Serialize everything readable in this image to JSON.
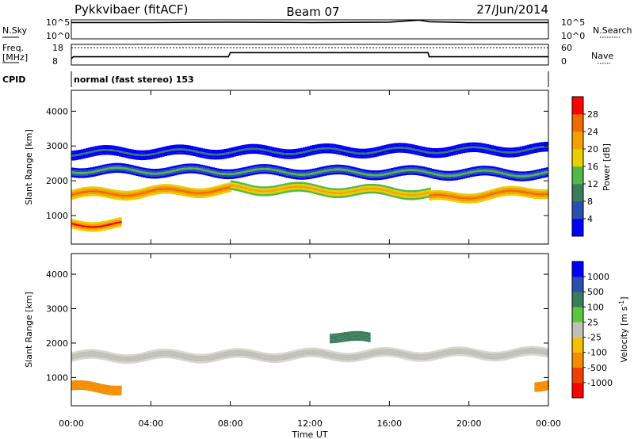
{
  "header": {
    "station": "Pykkvibaer (fitACF)",
    "beam": "Beam 07",
    "date": "27/Jun/2014"
  },
  "noise_panel": {
    "left_label": "N.Sky",
    "left_ticks": [
      "10^5",
      "10^0"
    ],
    "right_ticks": [
      "10^5",
      "10^0"
    ],
    "right_label": "N.Search"
  },
  "freq_panel": {
    "left_label_1": "Freq.",
    "left_label_2": "[MHz]",
    "left_ticks": [
      "18",
      "8"
    ],
    "right_ticks": [
      "60",
      "0"
    ],
    "right_label": "Nave"
  },
  "cpid": {
    "label": "CPID",
    "text": "normal (fast stereo) 153"
  },
  "time_axis": {
    "label": "Time UT",
    "ticks": [
      "00:00",
      "04:00",
      "08:00",
      "12:00",
      "16:00",
      "20:00",
      "00:00"
    ]
  },
  "power_panel": {
    "ylabel": "Slant Range [km]",
    "yticks": [
      "1000",
      "2000",
      "3000",
      "4000"
    ],
    "colorbar_label": "Power [dB]",
    "colorbar_ticks": [
      "4",
      "8",
      "12",
      "16",
      "20",
      "24",
      "28"
    ],
    "colors": [
      "#0000ff",
      "#2a4fb0",
      "#3a7d5c",
      "#54b848",
      "#e8d000",
      "#f5a000",
      "#f06a00",
      "#ff0000"
    ]
  },
  "velocity_panel": {
    "ylabel": "Slant Range [km]",
    "yticks": [
      "1000",
      "2000",
      "3000",
      "4000"
    ],
    "colorbar_label": "Velocity [m s",
    "colorbar_label_sup": "-1",
    "colorbar_label_end": "]",
    "colorbar_ticks": [
      "1000",
      "500",
      "100",
      "25",
      "-25",
      "-100",
      "-500",
      "-1000"
    ],
    "colors": [
      "#0000ff",
      "#2a4fb0",
      "#3a7d5c",
      "#5cc63e",
      "#c0c0b8",
      "#f5c000",
      "#f58c00",
      "#f04000",
      "#ff0000"
    ]
  },
  "chart_data": [
    {
      "type": "line",
      "panel": "noise",
      "x_range_hours": [
        0,
        24
      ],
      "series": [
        {
          "values_log": [
            {
              "x": 0.0,
              "y": 4.3
            },
            {
              "x": 4.0,
              "y": 4.3
            },
            {
              "x": 8.0,
              "y": 4.4
            },
            {
              "x": 12.0,
              "y": 4.3
            },
            {
              "x": 16.0,
              "y": 4.4
            },
            {
              "x": 17.5,
              "y": 4.9
            },
            {
              "x": 18.0,
              "y": 4.5
            },
            {
              "x": 20.0,
              "y": 4.3
            },
            {
              "x": 24.0,
              "y": 4.3
            }
          ]
        }
      ]
    },
    {
      "type": "line",
      "panel": "frequency",
      "ylim_mhz": [
        8,
        18
      ],
      "series": [
        {
          "values": [
            {
              "x": 0.0,
              "y": 11.0
            },
            {
              "x": 0.1,
              "y": 12.0
            },
            {
              "x": 7.9,
              "y": 12.0
            },
            {
              "x": 8.0,
              "y": 14.0
            },
            {
              "x": 17.95,
              "y": 14.0
            },
            {
              "x": 18.0,
              "y": 12.0
            },
            {
              "x": 24.0,
              "y": 12.0
            }
          ]
        },
        {
          "values": [
            {
              "x": 0.0,
              "y": 50
            },
            {
              "x": 24.0,
              "y": 50
            }
          ]
        }
      ]
    },
    {
      "type": "heatmap",
      "panel": "power",
      "x_range_hours": [
        0,
        24
      ],
      "ylim_km": [
        180,
        4600
      ],
      "zlim_db": [
        0,
        32
      ],
      "bands": [
        {
          "t": [
            0,
            8
          ],
          "r0": 1600,
          "r1": 1750,
          "db": 26
        },
        {
          "t": [
            8,
            18
          ],
          "r0": 1800,
          "r1": 1650,
          "db": 22
        },
        {
          "t": [
            18,
            24
          ],
          "r0": 1500,
          "r1": 1700,
          "db": 26
        },
        {
          "t": [
            0,
            2.5
          ],
          "r0": 750,
          "r1": 750,
          "db": 28
        },
        {
          "t": [
            0,
            24
          ],
          "r0": 2300,
          "r1": 2200,
          "db": 12
        },
        {
          "t": [
            0,
            24
          ],
          "r0": 2800,
          "r1": 2900,
          "db": 8
        }
      ]
    },
    {
      "type": "heatmap",
      "panel": "velocity",
      "x_range_hours": [
        0,
        24
      ],
      "ylim_km": [
        180,
        4600
      ],
      "zlim_ms": [
        -1000,
        1000
      ],
      "bands": [
        {
          "t": [
            0,
            24
          ],
          "r0": 1600,
          "r1": 1700,
          "v": 0
        },
        {
          "t": [
            0,
            2.5
          ],
          "r0": 700,
          "r1": 700,
          "v": -150
        },
        {
          "t": [
            13,
            15
          ],
          "r0": 2200,
          "r1": 2100,
          "v": 150
        },
        {
          "t": [
            23.3,
            24
          ],
          "r0": 800,
          "r1": 800,
          "v": -400
        }
      ]
    }
  ]
}
